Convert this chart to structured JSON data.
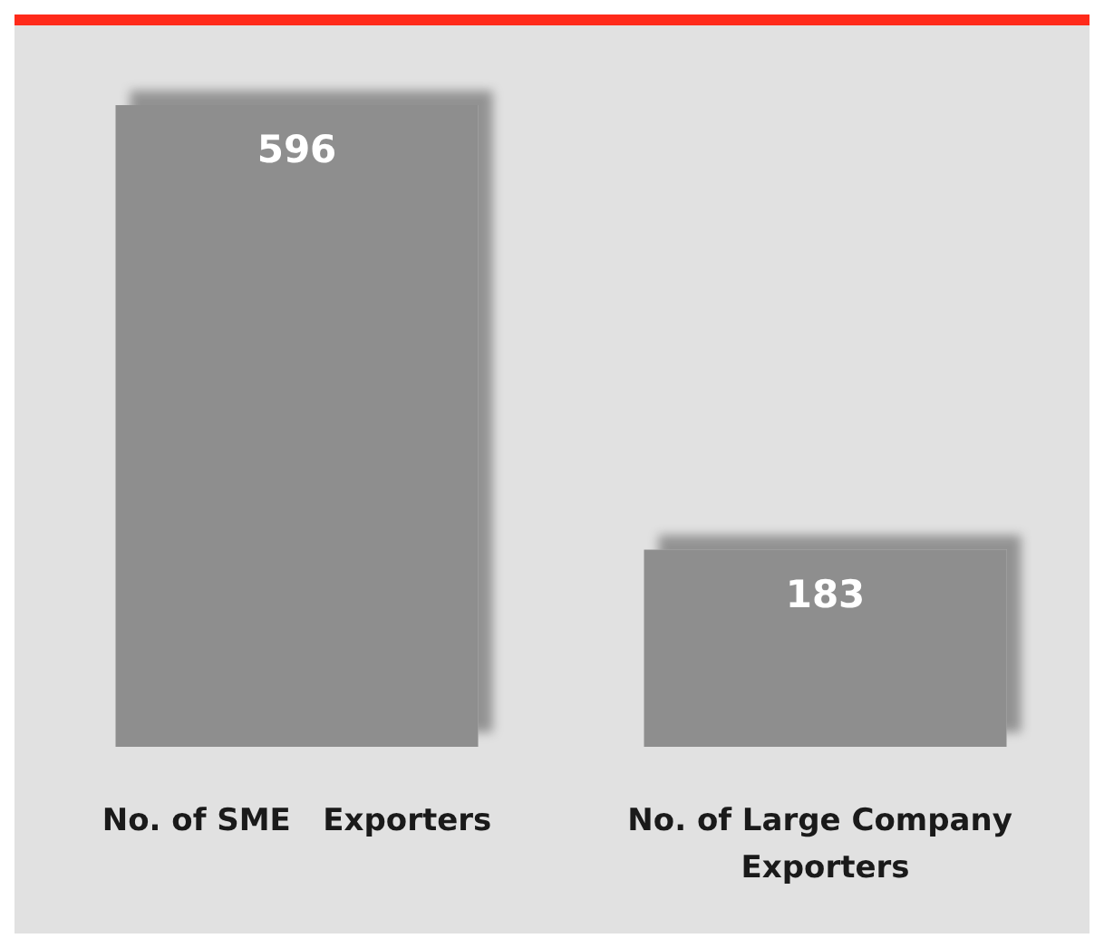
{
  "chart_data": {
    "type": "bar",
    "categories": [
      "No. of SME   Exporters",
      "No. of Large Company Exporters"
    ],
    "values": [
      596,
      183
    ],
    "color": "#8e8e8e",
    "data_labels": true
  }
}
